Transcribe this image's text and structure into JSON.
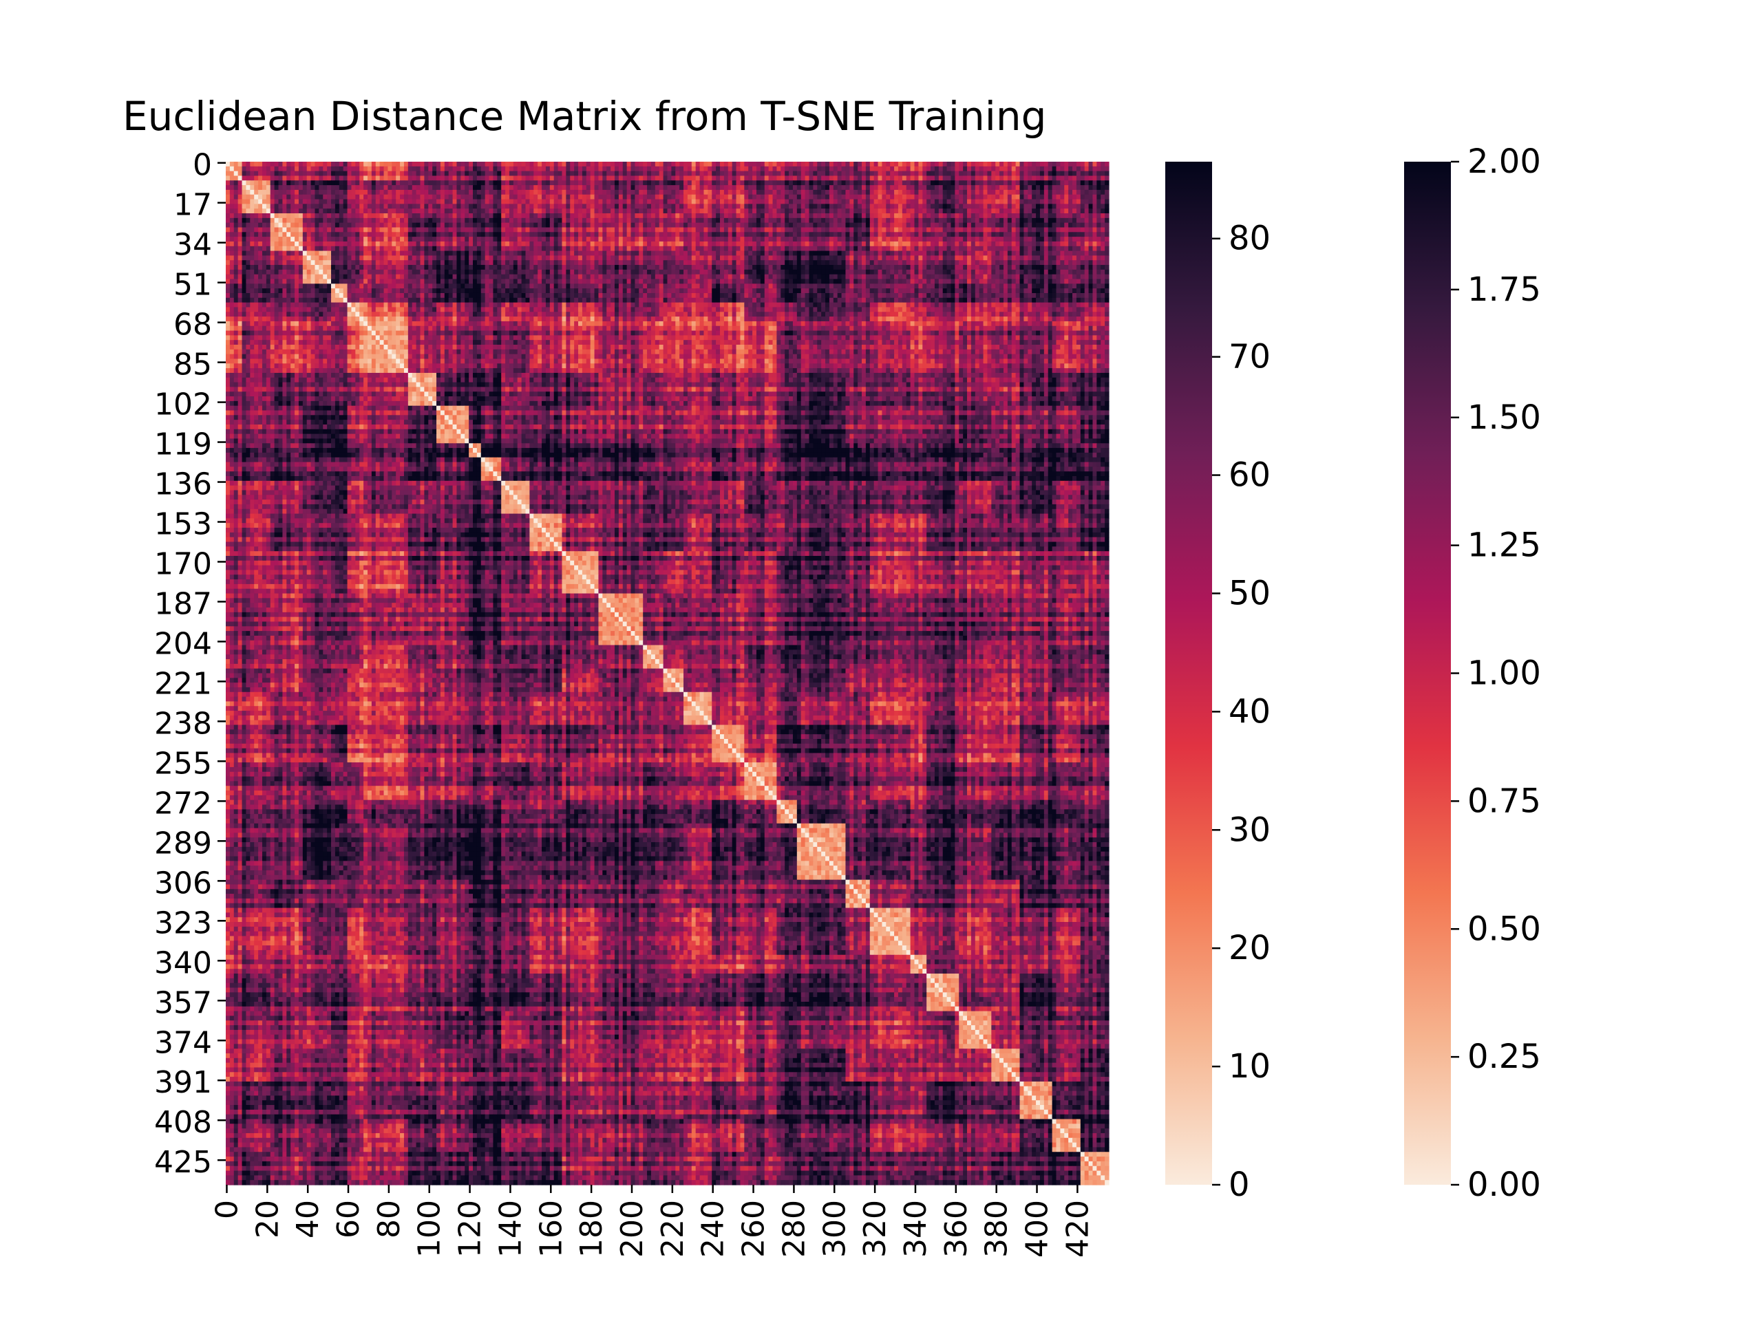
{
  "chart_data": {
    "type": "heatmap",
    "title": "Euclidean Distance Matrix from T-SNE Training",
    "matrix_size": 436,
    "xlabel": "",
    "ylabel": "",
    "x_tick_labels": [
      "0",
      "20",
      "40",
      "60",
      "80",
      "100",
      "120",
      "140",
      "160",
      "180",
      "200",
      "220",
      "240",
      "260",
      "280",
      "300",
      "320",
      "340",
      "360",
      "380",
      "400",
      "420"
    ],
    "y_tick_labels": [
      "0",
      "17",
      "34",
      "51",
      "68",
      "85",
      "102",
      "119",
      "136",
      "153",
      "170",
      "187",
      "204",
      "221",
      "238",
      "255",
      "272",
      "289",
      "306",
      "323",
      "340",
      "357",
      "374",
      "391",
      "408",
      "425"
    ],
    "colormap": "rocket_r",
    "colormap_stops": [
      "#faebdd",
      "#f6b48f",
      "#f37651",
      "#e13342",
      "#ad1759",
      "#701f57",
      "#35193e",
      "#03051a"
    ],
    "colorbars": [
      {
        "min": 0,
        "max": 86.5,
        "tick_labels": [
          "0",
          "10",
          "20",
          "30",
          "40",
          "50",
          "60",
          "70",
          "80"
        ]
      },
      {
        "min": 0,
        "max": 2.0,
        "tick_labels": [
          "0.00",
          "0.25",
          "0.50",
          "0.75",
          "1.00",
          "1.25",
          "1.50",
          "1.75",
          "2.00"
        ]
      }
    ],
    "clusters": [
      {
        "start": 0,
        "end": 8,
        "mean": 0.32
      },
      {
        "start": 8,
        "end": 22,
        "mean": 0.42
      },
      {
        "start": 22,
        "end": 38,
        "mean": 0.36
      },
      {
        "start": 38,
        "end": 52,
        "mean": 0.44
      },
      {
        "start": 52,
        "end": 60,
        "mean": 0.4
      },
      {
        "start": 60,
        "end": 68,
        "mean": 0.22
      },
      {
        "start": 68,
        "end": 90,
        "mean": 0.2
      },
      {
        "start": 90,
        "end": 104,
        "mean": 0.38
      },
      {
        "start": 104,
        "end": 120,
        "mean": 0.46
      },
      {
        "start": 120,
        "end": 126,
        "mean": 0.7
      },
      {
        "start": 126,
        "end": 136,
        "mean": 0.78
      },
      {
        "start": 136,
        "end": 150,
        "mean": 0.6
      },
      {
        "start": 150,
        "end": 166,
        "mean": 0.44
      },
      {
        "start": 166,
        "end": 184,
        "mean": 0.4
      },
      {
        "start": 184,
        "end": 206,
        "mean": 0.42
      },
      {
        "start": 206,
        "end": 216,
        "mean": 0.48
      },
      {
        "start": 216,
        "end": 226,
        "mean": 0.26
      },
      {
        "start": 226,
        "end": 240,
        "mean": 0.3
      },
      {
        "start": 240,
        "end": 256,
        "mean": 0.34
      },
      {
        "start": 256,
        "end": 272,
        "mean": 0.4
      },
      {
        "start": 272,
        "end": 282,
        "mean": 0.56
      },
      {
        "start": 282,
        "end": 306,
        "mean": 0.62
      },
      {
        "start": 306,
        "end": 318,
        "mean": 0.5
      },
      {
        "start": 318,
        "end": 338,
        "mean": 0.34
      },
      {
        "start": 338,
        "end": 346,
        "mean": 0.28
      },
      {
        "start": 346,
        "end": 362,
        "mean": 0.52
      },
      {
        "start": 362,
        "end": 378,
        "mean": 0.4
      },
      {
        "start": 378,
        "end": 392,
        "mean": 0.44
      },
      {
        "start": 392,
        "end": 408,
        "mean": 0.56
      },
      {
        "start": 408,
        "end": 422,
        "mean": 0.46
      },
      {
        "start": 422,
        "end": 436,
        "mean": 0.5
      }
    ],
    "notes": "Symmetric distance matrix with zero diagonal; block structure approximated by clusters (mean = relative distance 0-1 of cluster from others)."
  }
}
